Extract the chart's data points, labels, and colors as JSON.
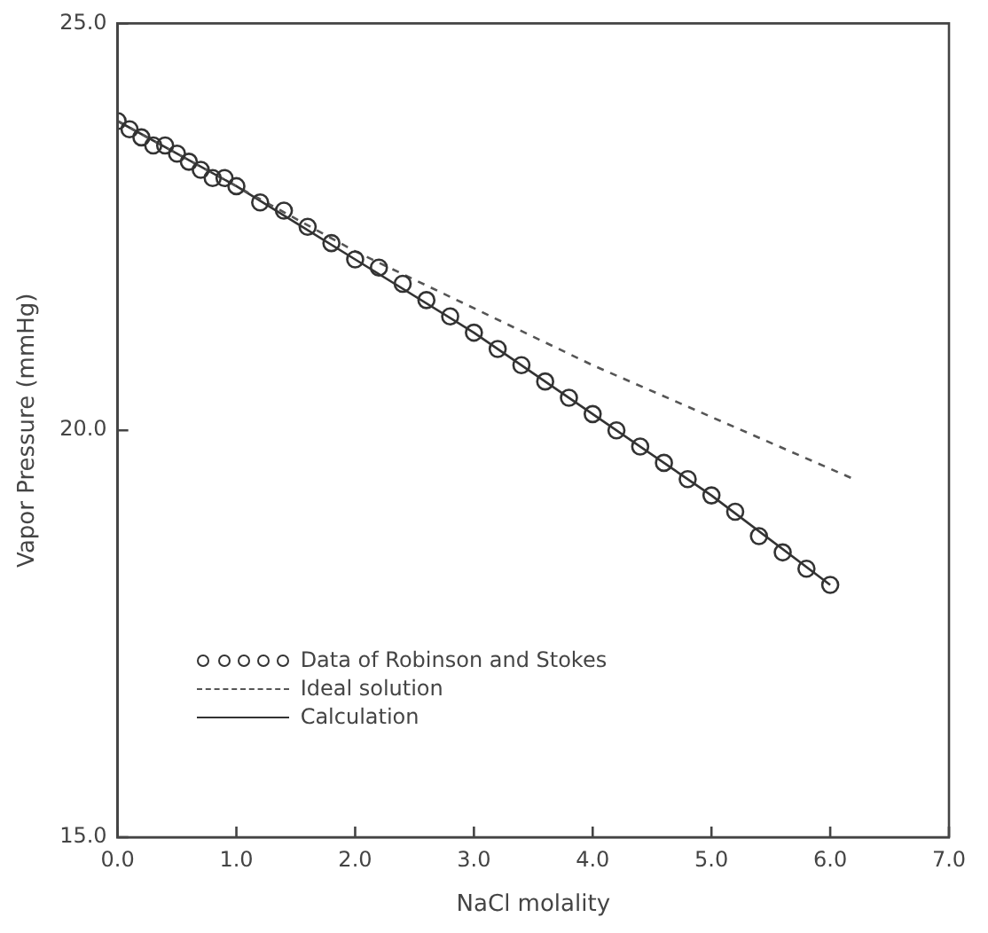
{
  "chart_data": {
    "type": "scatter",
    "xlabel": "NaCl molality",
    "ylabel": "Vapor Pressure (mmHg)",
    "xlim": [
      0,
      7
    ],
    "ylim": [
      15,
      25
    ],
    "xticks": [
      {
        "value": 0,
        "label": "0.0"
      },
      {
        "value": 1,
        "label": "1.0"
      },
      {
        "value": 2,
        "label": "2.0"
      },
      {
        "value": 3,
        "label": "3.0"
      },
      {
        "value": 4,
        "label": "4.0"
      },
      {
        "value": 5,
        "label": "5.0"
      },
      {
        "value": 6,
        "label": "6.0"
      },
      {
        "value": 7,
        "label": "7.0"
      }
    ],
    "yticks": [
      {
        "value": 15,
        "label": "15.0"
      },
      {
        "value": 20,
        "label": "20.0"
      },
      {
        "value": 25,
        "label": "25.0"
      }
    ],
    "grid": false,
    "legend": "bottom left",
    "series": [
      {
        "name": "Data of Robinson and Stokes",
        "marker": "circle",
        "color": "#333333",
        "x": [
          0,
          0.1,
          0.2,
          0.3,
          0.4,
          0.5,
          0.6,
          0.7,
          0.8,
          0.9,
          1.0,
          1.2,
          1.4,
          1.6,
          1.8,
          2.0,
          2.2,
          2.4,
          2.6,
          2.8,
          3.0,
          3.2,
          3.4,
          3.6,
          3.8,
          4.0,
          4.2,
          4.4,
          4.6,
          4.8,
          5.0,
          5.2,
          5.4,
          5.6,
          5.8,
          6.0
        ],
        "values": [
          23.8,
          23.7,
          23.6,
          23.5,
          23.5,
          23.4,
          23.3,
          23.2,
          23.1,
          23.1,
          23.0,
          22.8,
          22.7,
          22.5,
          22.3,
          22.1,
          22.0,
          21.8,
          21.6,
          21.4,
          21.2,
          21.0,
          20.8,
          20.6,
          20.4,
          20.2,
          20.0,
          19.8,
          19.6,
          19.4,
          19.2,
          19.0,
          18.7,
          18.5,
          18.3,
          18.1
        ]
      },
      {
        "name": "Ideal solution",
        "type": "line",
        "marker": "none",
        "line_style": "dashed",
        "color": "#555555",
        "x": [
          0,
          2,
          4,
          6.2
        ],
        "values": [
          23.8,
          22.2,
          20.8,
          19.4
        ]
      },
      {
        "name": "Calculation",
        "type": "line",
        "marker": "none",
        "line_style": "solid",
        "color": "#333333",
        "x": [
          0,
          1,
          2,
          3,
          4,
          5,
          6
        ],
        "values": [
          23.8,
          23.0,
          22.1,
          21.2,
          20.2,
          19.2,
          18.1
        ]
      }
    ]
  }
}
